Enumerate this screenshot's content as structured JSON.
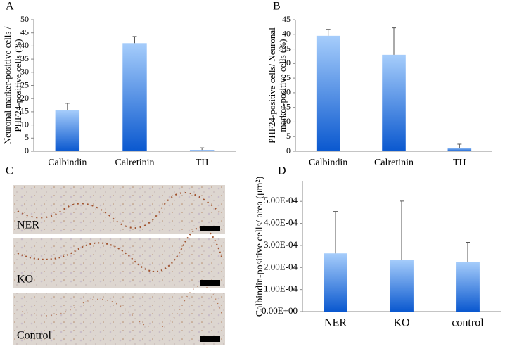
{
  "chart_data": [
    {
      "type": "bar",
      "panel": "A",
      "ylabel": [
        "Neuronal marker-positive cells /",
        "PHF24-positive cells (%)"
      ],
      "categories": [
        "Calbindin",
        "Calretinin",
        "TH"
      ],
      "values": [
        15.6,
        41.1,
        0.5
      ],
      "errors": [
        2.6,
        2.5,
        0.8
      ],
      "color": {
        "top": "#a6cdfb",
        "bottom": "#0a58cf"
      },
      "ylim": [
        0,
        50
      ],
      "yticks": [
        0,
        5,
        10,
        15,
        20,
        25,
        30,
        35,
        40,
        45,
        50
      ]
    },
    {
      "type": "bar",
      "panel": "B",
      "ylabel": [
        "PHF24-positive cells/ Neuronal",
        "marker-positive cells (%)"
      ],
      "categories": [
        "Calbindin",
        "Calretinin",
        "TH"
      ],
      "values": [
        39.5,
        33,
        1.2
      ],
      "errors": [
        2.2,
        9.2,
        1.2
      ],
      "color": {
        "top": "#a6cdfb",
        "bottom": "#0a58cf"
      },
      "ylim": [
        0,
        45
      ],
      "yticks": [
        0,
        5,
        10,
        15,
        20,
        25,
        30,
        35,
        40,
        45
      ]
    },
    {
      "type": "bar",
      "panel": "D",
      "ylabel": [
        "Calbindin-positive cells/ area (μm²)"
      ],
      "categories": [
        "NER",
        "KO",
        "control"
      ],
      "values": [
        0.000264,
        0.000236,
        0.000226
      ],
      "errors": [
        0.00019,
        0.000265,
        8.8e-05
      ],
      "color": {
        "top": "#a6cdfb",
        "bottom": "#0a58cf"
      },
      "ylim": [
        0,
        0.00059
      ],
      "yticks": [
        {
          "value": 0,
          "label": "0.00E+00"
        },
        {
          "value": 0.0001,
          "label": "1.00E-04"
        },
        {
          "value": 0.0002,
          "label": "2.00E-04"
        },
        {
          "value": 0.0003,
          "label": "3.00E-04"
        },
        {
          "value": 0.0004,
          "label": "4.00E-04"
        },
        {
          "value": 0.0005,
          "label": "5.00E-04"
        }
      ]
    }
  ],
  "image_panel": {
    "panel": "C",
    "images": [
      "NER",
      "KO",
      "Control"
    ]
  }
}
